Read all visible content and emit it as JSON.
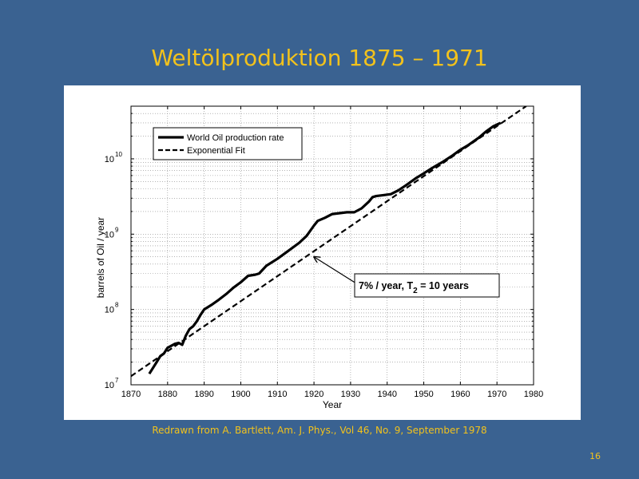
{
  "slide": {
    "title": "Weltölproduktion 1875 – 1971",
    "source": "Redrawn from A. Bartlett, Am. J. Phys., Vol 46, No. 9, September 1978",
    "page_number": "16"
  },
  "colors": {
    "background": "#3a6291",
    "title": "#f2c21c",
    "plot_bg": "#ffffff",
    "series": "#000000"
  },
  "chart_data": {
    "type": "line",
    "title": "",
    "xlabel": "Year",
    "ylabel": "barrels of Oil / year",
    "xlim": [
      1870,
      1980
    ],
    "ylim": [
      10000000.0,
      50000000000.0
    ],
    "yscale": "log",
    "grid": "on",
    "grid_style": "dotted",
    "x_ticks": [
      1870,
      1880,
      1890,
      1900,
      1910,
      1920,
      1930,
      1940,
      1950,
      1960,
      1970,
      1980
    ],
    "x_tick_labels": [
      "1870",
      "1880",
      "1890",
      "1900",
      "1910",
      "1920",
      "1930",
      "1940",
      "1950",
      "1960",
      "1970",
      "1980"
    ],
    "y_ticks": [
      {
        "base": "10",
        "exp": "7",
        "value": 10000000.0
      },
      {
        "base": "10",
        "exp": "8",
        "value": 100000000.0
      },
      {
        "base": "10",
        "exp": "9",
        "value": 1000000000.0
      },
      {
        "base": "10",
        "exp": "10",
        "value": 10000000000.0
      }
    ],
    "legend_position": "top-left",
    "series": [
      {
        "name": "World Oil production rate",
        "style": "solid",
        "x": [
          1875,
          1877,
          1878,
          1879,
          1880,
          1882,
          1883,
          1884,
          1885,
          1886,
          1887,
          1888,
          1889,
          1890,
          1892,
          1894,
          1896,
          1898,
          1900,
          1902,
          1904,
          1905,
          1907,
          1910,
          1913,
          1916,
          1918,
          1920,
          1921,
          1923,
          1925,
          1927,
          1929,
          1931,
          1933,
          1935,
          1936,
          1937,
          1939,
          1941,
          1943,
          1945,
          1948,
          1950,
          1952,
          1955,
          1958,
          1960,
          1962,
          1965,
          1967,
          1969,
          1971
        ],
        "y": [
          14000000.0,
          20000000.0,
          24000000.0,
          26000000.0,
          31000000.0,
          35000000.0,
          36000000.0,
          34000000.0,
          45000000.0,
          55000000.0,
          60000000.0,
          70000000.0,
          85000000.0,
          100000000.0,
          115000000.0,
          135000000.0,
          160000000.0,
          195000000.0,
          230000000.0,
          280000000.0,
          290000000.0,
          300000000.0,
          380000000.0,
          470000000.0,
          600000000.0,
          770000000.0,
          950000000.0,
          1300000000.0,
          1500000000.0,
          1650000000.0,
          1850000000.0,
          1900000000.0,
          1950000000.0,
          1950000000.0,
          2200000000.0,
          2700000000.0,
          3100000000.0,
          3200000000.0,
          3300000000.0,
          3400000000.0,
          3800000000.0,
          4400000000.0,
          5600000000.0,
          6400000000.0,
          7400000000.0,
          9000000000.0,
          11200000000.0,
          13200000000.0,
          15000000000.0,
          19000000000.0,
          23000000000.0,
          27000000000.0,
          30000000000.0
        ]
      },
      {
        "name": "Exponential Fit",
        "style": "dashed",
        "x": [
          1870,
          1978
        ],
        "y": [
          13000000.0,
          50000000000.0
        ]
      }
    ],
    "annotations": [
      {
        "text_main": "7% / year, T",
        "text_sub": "2",
        "text_rest": " = 10 years",
        "arrow_to_x": 1920,
        "arrow_to_y": 500000000.0
      }
    ]
  }
}
